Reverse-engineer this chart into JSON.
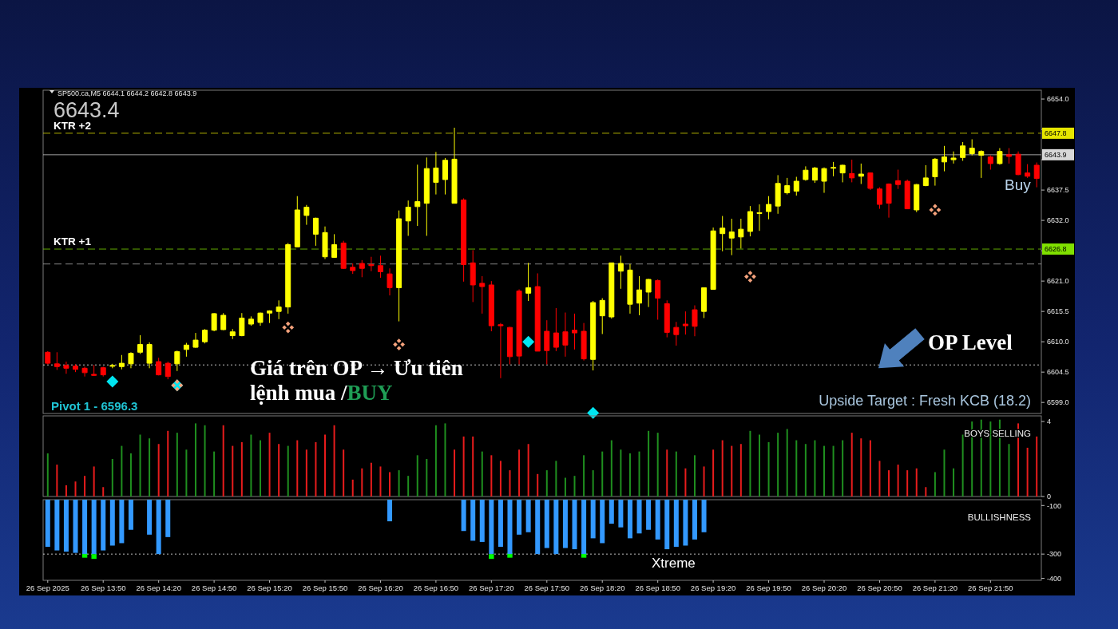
{
  "chart_data": [
    {
      "type": "candlestick",
      "title": "SP500.ca,M5 6644.1 6644.2 6642.8 6643.9",
      "categories": [
        null,
        null,
        null,
        null,
        null,
        null,
        null,
        null,
        null,
        null,
        null,
        null,
        null,
        null,
        null,
        null,
        null,
        null,
        null,
        null,
        null,
        null,
        null,
        null,
        null,
        null,
        null,
        null,
        null,
        null,
        null,
        null,
        null,
        null,
        null,
        null,
        null,
        null,
        null,
        null,
        null,
        null,
        null,
        null,
        null,
        null,
        null,
        null,
        null,
        null,
        null,
        null,
        null,
        null,
        null,
        null,
        null,
        null,
        null,
        null,
        null,
        null,
        null,
        null,
        null,
        null,
        null,
        null,
        null,
        null,
        null,
        null,
        null,
        null,
        null,
        null,
        null,
        null,
        null,
        null,
        null,
        null,
        null,
        null,
        null,
        null,
        null,
        null,
        null,
        null,
        null,
        null,
        null,
        null,
        null,
        null,
        null,
        null,
        null,
        null,
        null,
        null,
        null,
        null,
        null,
        null,
        null,
        null
      ],
      "ohlc": [
        [
          6608.1,
          6608.3,
          6605.9,
          6606.1
        ],
        [
          6606.0,
          6608.1,
          6604.9,
          6605.5
        ],
        [
          6605.7,
          6606.4,
          6604.2,
          6605.2
        ],
        [
          6605.6,
          6605.9,
          6604.5,
          6605.0
        ],
        [
          6605.2,
          6605.5,
          6603.7,
          6604.4
        ],
        [
          6604.1,
          6605.8,
          6603.8,
          6603.9
        ],
        [
          6605.3,
          6605.5,
          6603.7,
          6604.0
        ],
        [
          6605.6,
          6606.0,
          6605.2,
          6605.7
        ],
        [
          6605.5,
          6607.6,
          6605.0,
          6606.1
        ],
        [
          6606.0,
          6608.1,
          6605.2,
          6607.9
        ],
        [
          6608.1,
          6611.2,
          6607.8,
          6609.5
        ],
        [
          6606.1,
          6609.9,
          6605.2,
          6609.5
        ],
        [
          6606.4,
          6607.1,
          6603.9,
          6604.0
        ],
        [
          6606.1,
          6606.4,
          6603.2,
          6603.7
        ],
        [
          6606.0,
          6608.4,
          6604.7,
          6608.2
        ],
        [
          6608.6,
          6609.8,
          6607.3,
          6609.4
        ],
        [
          6609.0,
          6611.6,
          6608.9,
          6610.3
        ],
        [
          6610.0,
          6612.3,
          6609.7,
          6612.1
        ],
        [
          6612.1,
          6615.2,
          6611.9,
          6615.1
        ],
        [
          6612.2,
          6615.2,
          6612.1,
          6614.8
        ],
        [
          6611.1,
          6612.3,
          6610.5,
          6611.8
        ],
        [
          6611.1,
          6615.2,
          6611.0,
          6614.3
        ],
        [
          6613.2,
          6614.6,
          6612.9,
          6614.1
        ],
        [
          6613.5,
          6615.3,
          6612.9,
          6615.2
        ],
        [
          6615.2,
          6615.7,
          6613.4,
          6615.6
        ],
        [
          6615.5,
          6617.5,
          6614.1,
          6616.3
        ],
        [
          6616.3,
          6627.9,
          6615.1,
          6627.6
        ],
        [
          6627.2,
          6636.4,
          6627.2,
          6633.9
        ],
        [
          6632.9,
          6634.8,
          6631.2,
          6634.4
        ],
        [
          6629.5,
          6632.5,
          6627.4,
          6632.4
        ],
        [
          6625.4,
          6630.9,
          6625.0,
          6629.8
        ],
        [
          6625.3,
          6629.5,
          6625.2,
          6627.6
        ],
        [
          6627.9,
          6628.3,
          6623.2,
          6623.3
        ],
        [
          6623.5,
          6624.2,
          6622.3,
          6622.9
        ],
        [
          6624.2,
          6624.8,
          6621.7,
          6623.3
        ],
        [
          6624.0,
          6625.4,
          6622.8,
          6623.8
        ],
        [
          6623.8,
          6625.6,
          6621.6,
          6622.7
        ],
        [
          6622.3,
          6623.3,
          6618.4,
          6619.8
        ],
        [
          6619.8,
          6633.8,
          6613.7,
          6632.3
        ],
        [
          6631.9,
          6635.6,
          6629.2,
          6634.4
        ],
        [
          6634.5,
          6642.1,
          6631.0,
          6635.4
        ],
        [
          6635.1,
          6643.4,
          6629.2,
          6641.4
        ],
        [
          6638.9,
          6644.4,
          6636.7,
          6641.5
        ],
        [
          6639.4,
          6643.3,
          6636.7,
          6642.9
        ],
        [
          6635.1,
          6648.8,
          6635.1,
          6643.1
        ],
        [
          6635.7,
          6636.0,
          6620.9,
          6624.0
        ],
        [
          6624.3,
          6626.6,
          6617.2,
          6620.3
        ],
        [
          6620.6,
          6621.9,
          6615.1,
          6620.0
        ],
        [
          6620.3,
          6621.0,
          6611.9,
          6612.9
        ],
        [
          6613.1,
          6613.4,
          6603.4,
          6612.9
        ],
        [
          6612.6,
          6612.7,
          6605.9,
          6607.3
        ],
        [
          6619.2,
          6619.5,
          6605.9,
          6607.4
        ],
        [
          6618.8,
          6624.3,
          6617.4,
          6619.8
        ],
        [
          6620.0,
          6622.4,
          6608.3,
          6608.3
        ],
        [
          6611.9,
          6613.9,
          6605.9,
          6608.4
        ],
        [
          6611.6,
          6616.1,
          6608.3,
          6609.0
        ],
        [
          6611.8,
          6615.3,
          6607.3,
          6609.4
        ],
        [
          6612.1,
          6615.1,
          6608.6,
          6611.6
        ],
        [
          6611.9,
          6613.4,
          6606.6,
          6606.9
        ],
        [
          6606.8,
          6617.4,
          6604.8,
          6617.1
        ],
        [
          6614.7,
          6617.9,
          6611.4,
          6617.5
        ],
        [
          6614.5,
          6624.3,
          6614.2,
          6624.3
        ],
        [
          6622.8,
          6625.6,
          6619.6,
          6624.2
        ],
        [
          6616.8,
          6624.1,
          6615.1,
          6623.0
        ],
        [
          6617.0,
          6621.9,
          6614.8,
          6619.4
        ],
        [
          6619.0,
          6621.4,
          6616.3,
          6621.3
        ],
        [
          6621.1,
          6621.3,
          6614.0,
          6617.9
        ],
        [
          6616.9,
          6617.5,
          6610.8,
          6611.7
        ],
        [
          6612.6,
          6613.6,
          6609.3,
          6611.3
        ],
        [
          6613.2,
          6615.5,
          6611.3,
          6612.9
        ],
        [
          6615.8,
          6616.6,
          6611.0,
          6612.8
        ],
        [
          6615.5,
          6619.8,
          6614.3,
          6619.8
        ],
        [
          6619.5,
          6630.7,
          6619.5,
          6630.1
        ],
        [
          6629.6,
          6632.8,
          6626.4,
          6630.6
        ],
        [
          6628.8,
          6632.3,
          6625.7,
          6629.9
        ],
        [
          6629.0,
          6632.3,
          6626.9,
          6630.4
        ],
        [
          6630.0,
          6634.6,
          6629.1,
          6633.6
        ],
        [
          6633.3,
          6634.9,
          6630.1,
          6633.4
        ],
        [
          6633.6,
          6636.4,
          6632.2,
          6634.9
        ],
        [
          6634.6,
          6640.2,
          6633.2,
          6638.7
        ],
        [
          6637.0,
          6639.7,
          6636.7,
          6638.3
        ],
        [
          6637.3,
          6639.9,
          6636.5,
          6639.1
        ],
        [
          6639.4,
          6641.8,
          6639.2,
          6641.1
        ],
        [
          6639.3,
          6641.7,
          6638.8,
          6641.5
        ],
        [
          6639.1,
          6641.6,
          6637.0,
          6641.4
        ],
        [
          6641.5,
          6642.6,
          6640.0,
          6641.6
        ],
        [
          6640.6,
          6642.1,
          6638.9,
          6642.0
        ],
        [
          6640.5,
          6643.0,
          6638.9,
          6639.7
        ],
        [
          6640.0,
          6642.3,
          6638.6,
          6640.4
        ],
        [
          6640.6,
          6640.7,
          6637.5,
          6637.8
        ],
        [
          6637.7,
          6638.0,
          6634.1,
          6634.9
        ],
        [
          6638.6,
          6638.7,
          6632.5,
          6635.1
        ],
        [
          6639.2,
          6641.2,
          6637.7,
          6638.5
        ],
        [
          6639.1,
          6639.4,
          6634.1,
          6634.1
        ],
        [
          6633.9,
          6638.6,
          6633.5,
          6638.5
        ],
        [
          6638.3,
          6642.0,
          6638.2,
          6639.7
        ],
        [
          6639.9,
          6643.3,
          6638.3,
          6643.1
        ],
        [
          6642.6,
          6645.5,
          6640.9,
          6643.5
        ],
        [
          6643.0,
          6644.5,
          6642.3,
          6643.3
        ],
        [
          6643.4,
          6646.2,
          6642.8,
          6645.5
        ],
        [
          6644.1,
          6646.7,
          6643.8,
          6645.1
        ],
        [
          6643.8,
          6644.7,
          6639.7,
          6644.5
        ],
        [
          6643.5,
          6643.8,
          6641.2,
          6642.3
        ],
        [
          6642.3,
          6645.1,
          6642.1,
          6644.5
        ],
        [
          6643.9,
          6645.1,
          6642.3,
          6643.6
        ],
        [
          6644.0,
          6644.5,
          6640.2,
          6640.3
        ],
        [
          6640.6,
          6642.2,
          6639.7,
          6640.0
        ],
        [
          6642.0,
          6642.5,
          6638.0,
          6639.6
        ]
      ],
      "colors": [
        "#ff0000",
        "#ff0000",
        "#ff0000",
        "#ff0000",
        "#ff0000",
        "#ff0000",
        "#ff0000",
        "#ffff00",
        "#ffff00",
        "#ffff00",
        "#ffff00",
        "#ffff00",
        "#ff0000",
        "#ff0000",
        "#ffff00",
        "#ffff00",
        "#ffff00",
        "#ffff00",
        "#ffff00",
        "#ffff00",
        "#ffff00",
        "#ffff00",
        "#ffff00",
        "#ffff00",
        "#ffff00",
        "#ffff00",
        "#ffff00",
        "#ffff00",
        "#ffff00",
        "#ffff00",
        "#ffff00",
        "#ffff00",
        "#ff0000",
        "#ff0000",
        "#ff0000",
        "#ff0000",
        "#ff0000",
        "#ff0000",
        "#ffff00",
        "#ffff00",
        "#ffff00",
        "#ffff00",
        "#ffff00",
        "#ffff00",
        "#ffff00",
        "#ff0000",
        "#ff0000",
        "#ff0000",
        "#ff0000",
        "#ff0000",
        "#ff0000",
        "#ff0000",
        "#ffff00",
        "#ff0000",
        "#ff0000",
        "#ff0000",
        "#ff0000",
        "#ff0000",
        "#ff0000",
        "#ffff00",
        "#ffff00",
        "#ffff00",
        "#ffff00",
        "#ffff00",
        "#ffff00",
        "#ffff00",
        "#ff0000",
        "#ff0000",
        "#ff0000",
        "#ff0000",
        "#ff0000",
        "#ffff00",
        "#ffff00",
        "#ffff00",
        "#ffff00",
        "#ffff00",
        "#ffff00",
        "#ffff00",
        "#ffff00",
        "#ffff00",
        "#ffff00",
        "#ffff00",
        "#ffff00",
        "#ffff00",
        "#ffff00",
        "#ffff00",
        "#ffff00",
        "#ff0000",
        "#ffff00",
        "#ff0000",
        "#ff0000",
        "#ff0000",
        "#ff0000",
        "#ff0000",
        "#ffff00",
        "#ffff00",
        "#ffff00",
        "#ffff00",
        "#ffff00",
        "#ffff00",
        "#ffff00",
        "#ffff00",
        "#ff0000",
        "#ffff00",
        "#ff0000",
        "#ff0000",
        "#ff0000",
        "#ff0000"
      ],
      "series": [
        {
          "type": "scatter",
          "color": "#00e5f0",
          "marker": "diamond",
          "values": [
            null,
            null,
            null,
            null,
            null,
            null,
            null,
            6602.8,
            null,
            null,
            null,
            null,
            null,
            null,
            6602.1,
            null,
            null,
            null,
            null,
            null,
            null,
            null,
            null,
            null,
            null,
            null,
            null,
            null,
            null,
            null,
            null,
            null,
            null,
            null,
            null,
            null,
            null,
            null,
            null,
            null,
            null,
            null,
            null,
            null,
            null,
            null,
            null,
            null,
            null,
            null,
            null,
            null,
            6610.0,
            null,
            null,
            null,
            null,
            null,
            null,
            6597.1,
            null,
            null,
            null,
            null,
            null,
            null,
            null,
            null,
            null,
            null,
            null,
            null,
            null,
            null,
            null,
            null,
            null,
            null,
            null,
            null,
            null,
            null,
            null,
            null,
            null,
            null,
            null,
            null,
            null,
            null,
            null,
            null,
            null,
            null,
            null,
            null,
            null,
            null,
            null,
            null,
            null,
            null,
            null,
            null,
            null,
            null,
            null,
            null
          ]
        },
        {
          "type": "scatter",
          "color": "#f5a27c",
          "marker": "cross",
          "values": [
            null,
            null,
            null,
            null,
            null,
            null,
            null,
            null,
            null,
            null,
            null,
            null,
            null,
            null,
            6602.1,
            null,
            null,
            null,
            null,
            null,
            null,
            null,
            null,
            null,
            null,
            null,
            6612.6,
            null,
            null,
            null,
            null,
            null,
            null,
            null,
            null,
            null,
            null,
            null,
            6609.5,
            null,
            null,
            null,
            null,
            null,
            null,
            null,
            null,
            null,
            null,
            null,
            null,
            null,
            null,
            null,
            null,
            null,
            null,
            null,
            null,
            null,
            null,
            null,
            null,
            null,
            null,
            null,
            null,
            null,
            null,
            null,
            null,
            null,
            null,
            null,
            null,
            null,
            6621.8,
            null,
            null,
            null,
            null,
            null,
            null,
            null,
            null,
            null,
            null,
            null,
            null,
            null,
            null,
            null,
            null,
            null,
            null,
            null,
            6633.9,
            null,
            null,
            null,
            null,
            null,
            null,
            null,
            null,
            null,
            null,
            null
          ]
        }
      ],
      "ylim": [
        6597.0,
        6655.6
      ],
      "yticks": [
        {
          "value": 6654,
          "label": "6654.0"
        },
        {
          "value": 6648.5,
          "label": null
        },
        {
          "value": 6643,
          "label": null
        },
        {
          "value": 6637.5,
          "label": "6637.5"
        },
        {
          "value": 6632,
          "label": "6632.0"
        },
        {
          "value": 6626.5,
          "label": null
        },
        {
          "value": 6621,
          "label": "6621.0"
        },
        {
          "value": 6615.5,
          "label": "6615.5"
        },
        {
          "value": 6610,
          "label": "6610.0"
        },
        {
          "value": 6604.5,
          "label": "6604.5"
        },
        {
          "value": 6599,
          "label": "6599.0"
        }
      ],
      "tick_labels": "y",
      "ref_lines": [
        {
          "axis": "y",
          "value": 6647.8,
          "label": "6647.8",
          "color": "#e6e600",
          "line_style": "dashed"
        },
        {
          "axis": "y",
          "value": 6643.9,
          "label": "6643.9",
          "color": "#d8d8d8",
          "line_style": "solid"
        },
        {
          "axis": "y",
          "value": 6626.8,
          "label": "6626.8",
          "color": "#80e000",
          "line_style": "dashed"
        },
        {
          "axis": "y",
          "value": 6624.1,
          "color": "#b0b0b0",
          "line_style": "dashed"
        },
        {
          "axis": "y",
          "value": 6605.8,
          "color": "#ffffff",
          "line_style": "dotted"
        }
      ],
      "annotations": [
        "6643.4",
        {
          "text": "KTR +2",
          "y": 6647.8
        },
        {
          "text": "KTR +1",
          "y": 6626.8
        },
        "Giá trên OP → Ưu tiên",
        "lệnh mua /BUY",
        {
          "text": "OP Level",
          "y": 6605.8
        },
        "Buy",
        "Upside Target : Fresh KCB (18.2)",
        "Pivot 1 - 6596.3"
      ]
    },
    {
      "type": "bar",
      "title": "BOYS SELLING",
      "categories": [
        null,
        null,
        null,
        null,
        null,
        null,
        null,
        null,
        null,
        null,
        null,
        null,
        null,
        null,
        null,
        null,
        null,
        null,
        null,
        null,
        null,
        null,
        null,
        null,
        null,
        null,
        null,
        null,
        null,
        null,
        null,
        null,
        null,
        null,
        null,
        null,
        null,
        null,
        null,
        null,
        null,
        null,
        null,
        null,
        null,
        null,
        null,
        null,
        null,
        null,
        null,
        null,
        null,
        null,
        null,
        null,
        null,
        null,
        null,
        null,
        null,
        null,
        null,
        null,
        null,
        null,
        null,
        null,
        null,
        null,
        null,
        null,
        null,
        null,
        null,
        null,
        null,
        null,
        null,
        null,
        null,
        null,
        null,
        null,
        null,
        null,
        null,
        null,
        null,
        null,
        null,
        null,
        null,
        null,
        null,
        null,
        null,
        null,
        null,
        null,
        null,
        null,
        null,
        null,
        null,
        null,
        null,
        null
      ],
      "values": [
        2.3,
        1.7,
        0.6,
        0.8,
        1.1,
        1.6,
        0.5,
        2.0,
        2.7,
        2.3,
        3.3,
        3.1,
        2.8,
        3.5,
        3.4,
        2.5,
        3.9,
        3.8,
        2.4,
        3.8,
        2.7,
        2.9,
        3.3,
        3.0,
        3.4,
        2.8,
        2.7,
        3.0,
        2.5,
        2.9,
        3.3,
        3.8,
        2.5,
        0.9,
        1.5,
        1.8,
        1.6,
        1.3,
        1.4,
        1.1,
        2.2,
        2.0,
        3.8,
        3.9,
        2.5,
        3.2,
        3.2,
        2.4,
        2.2,
        1.9,
        1.4,
        2.5,
        2.8,
        1.2,
        1.4,
        1.9,
        1.0,
        1.1,
        2.2,
        1.4,
        2.4,
        3.0,
        2.5,
        2.3,
        2.4,
        3.5,
        3.4,
        2.5,
        2.4,
        1.5,
        2.2,
        1.6,
        2.5,
        3.0,
        2.7,
        2.8,
        3.5,
        3.3,
        2.9,
        3.4,
        3.6,
        3.0,
        2.8,
        3.0,
        2.7,
        2.7,
        3.0,
        3.4,
        3.1,
        3.0,
        1.9,
        1.4,
        1.7,
        1.4,
        1.5,
        0.5,
        1.3,
        2.5,
        1.5,
        3.3,
        4.0,
        4.1,
        4.0,
        4.1,
        2.8,
        3.9,
        2.6,
        3.2
      ],
      "colors": [
        "#1f8f1f",
        "#e81c1c",
        "#e81c1c",
        "#e81c1c",
        "#e81c1c",
        "#e81c1c",
        "#e81c1c",
        "#1f8f1f",
        "#1f8f1f",
        "#1f8f1f",
        "#1f8f1f",
        "#1f8f1f",
        "#e81c1c",
        "#e81c1c",
        "#1f8f1f",
        "#1f8f1f",
        "#1f8f1f",
        "#1f8f1f",
        "#1f8f1f",
        "#e81c1c",
        "#e81c1c",
        "#e81c1c",
        "#1f8f1f",
        "#1f8f1f",
        "#e81c1c",
        "#e81c1c",
        "#1f8f1f",
        "#e81c1c",
        "#e81c1c",
        "#e81c1c",
        "#e81c1c",
        "#e81c1c",
        "#e81c1c",
        "#e81c1c",
        "#e81c1c",
        "#e81c1c",
        "#e81c1c",
        "#e81c1c",
        "#1f8f1f",
        "#1f8f1f",
        "#1f8f1f",
        "#1f8f1f",
        "#1f8f1f",
        "#1f8f1f",
        "#e81c1c",
        "#e81c1c",
        "#e81c1c",
        "#1f8f1f",
        "#e81c1c",
        "#e81c1c",
        "#e81c1c",
        "#e81c1c",
        "#e81c1c",
        "#e81c1c",
        "#1f8f1f",
        "#1f8f1f",
        "#1f8f1f",
        "#1f8f1f",
        "#1f8f1f",
        "#1f8f1f",
        "#1f8f1f",
        "#1f8f1f",
        "#1f8f1f",
        "#1f8f1f",
        "#1f8f1f",
        "#1f8f1f",
        "#1f8f1f",
        "#e81c1c",
        "#1f8f1f",
        "#e81c1c",
        "#1f8f1f",
        "#e81c1c",
        "#e81c1c",
        "#e81c1c",
        "#e81c1c",
        "#e81c1c",
        "#1f8f1f",
        "#1f8f1f",
        "#1f8f1f",
        "#1f8f1f",
        "#1f8f1f",
        "#1f8f1f",
        "#1f8f1f",
        "#1f8f1f",
        "#1f8f1f",
        "#1f8f1f",
        "#1f8f1f",
        "#e81c1c",
        "#e81c1c",
        "#e81c1c",
        "#e81c1c",
        "#e81c1c",
        "#e81c1c",
        "#e81c1c",
        "#e81c1c",
        "#e81c1c",
        "#1f8f1f",
        "#1f8f1f",
        "#1f8f1f",
        "#1f8f1f",
        "#1f8f1f",
        "#1f8f1f",
        "#1f8f1f",
        "#1f8f1f",
        "#1f8f1f",
        "#e81c1c",
        "#e81c1c",
        "#e81c1c"
      ],
      "ylim": [
        0,
        4.3
      ],
      "yticks": [
        0,
        4
      ],
      "tick_labels": "y"
    },
    {
      "type": "bar",
      "title": "BULLISHNESS",
      "categories": [
        "26 Sep 2025",
        null,
        null,
        null,
        null,
        null,
        "26 Sep 13:50",
        null,
        null,
        null,
        null,
        null,
        "26 Sep 14:20",
        null,
        null,
        null,
        null,
        null,
        "26 Sep 14:50",
        null,
        null,
        null,
        null,
        null,
        "26 Sep 15:20",
        null,
        null,
        null,
        null,
        null,
        "26 Sep 15:50",
        null,
        null,
        null,
        null,
        null,
        "26 Sep 16:20",
        null,
        null,
        null,
        null,
        null,
        "26 Sep 16:50",
        null,
        null,
        null,
        null,
        null,
        "26 Sep 17:20",
        null,
        null,
        null,
        null,
        null,
        "26 Sep 17:50",
        null,
        null,
        null,
        null,
        null,
        "26 Sep 18:20",
        null,
        null,
        null,
        null,
        null,
        "26 Sep 18:50",
        null,
        null,
        null,
        null,
        null,
        "26 Sep 19:20",
        null,
        null,
        null,
        null,
        null,
        "26 Sep 19:50",
        null,
        null,
        null,
        null,
        null,
        "26 Sep 20:20",
        null,
        null,
        null,
        null,
        null,
        "26 Sep 20:50",
        null,
        null,
        null,
        null,
        null,
        "26 Sep 21:20",
        null,
        null,
        null,
        null,
        null,
        "26 Sep 21:50",
        null,
        null,
        null,
        null,
        null
      ],
      "series": [
        {
          "color": "#3399ff",
          "values": [
            -270,
            -285,
            -290,
            -295,
            -300,
            -300,
            -285,
            -265,
            -255,
            -200,
            null,
            -220,
            -300,
            -230,
            null,
            null,
            null,
            null,
            null,
            null,
            null,
            null,
            null,
            null,
            null,
            null,
            null,
            null,
            null,
            null,
            null,
            null,
            null,
            null,
            null,
            null,
            null,
            -165,
            null,
            null,
            null,
            null,
            null,
            null,
            null,
            -205,
            -245,
            -250,
            -300,
            -270,
            -300,
            -220,
            -210,
            -300,
            -275,
            -300,
            -275,
            -280,
            -300,
            -235,
            -255,
            -175,
            -190,
            -235,
            -215,
            -200,
            -240,
            -280,
            -270,
            -265,
            -240,
            -210,
            null,
            null,
            null,
            null,
            null,
            null,
            null,
            null,
            null,
            null,
            null,
            null,
            null,
            null,
            null,
            null,
            null,
            null,
            null,
            null,
            null,
            null,
            null,
            null,
            null,
            null,
            null,
            null,
            null,
            null,
            null,
            null,
            null,
            null,
            null,
            null
          ]
        },
        {
          "type": "scatter",
          "color": "#00ff00",
          "marker": "square",
          "values": [
            null,
            null,
            null,
            null,
            -305,
            -310,
            null,
            null,
            null,
            null,
            null,
            null,
            null,
            null,
            null,
            null,
            null,
            null,
            null,
            null,
            null,
            null,
            null,
            null,
            null,
            null,
            null,
            null,
            null,
            null,
            null,
            null,
            null,
            null,
            null,
            null,
            null,
            null,
            null,
            null,
            null,
            null,
            null,
            null,
            null,
            null,
            null,
            null,
            -310,
            null,
            -305,
            null,
            null,
            null,
            null,
            null,
            null,
            null,
            -305,
            null,
            null,
            null,
            null,
            null,
            null,
            null,
            null,
            null,
            null,
            null,
            null,
            null,
            null,
            null,
            null,
            null,
            null,
            null,
            null,
            null,
            null,
            null,
            null,
            null,
            null,
            null,
            null,
            null,
            null,
            null,
            null,
            null,
            null,
            null,
            null,
            null,
            null,
            null,
            null,
            null,
            null,
            null,
            null,
            null,
            null,
            null,
            null,
            null
          ]
        }
      ],
      "ylim": [
        -408,
        -76
      ],
      "yticks": [
        -100,
        -300,
        -400
      ],
      "ref_lines": [
        {
          "axis": "y",
          "value": -300,
          "color": "#ffffff",
          "line_style": "dotted"
        }
      ],
      "annotations": [
        {
          "text": "Xtreme",
          "y": -300
        }
      ]
    }
  ]
}
